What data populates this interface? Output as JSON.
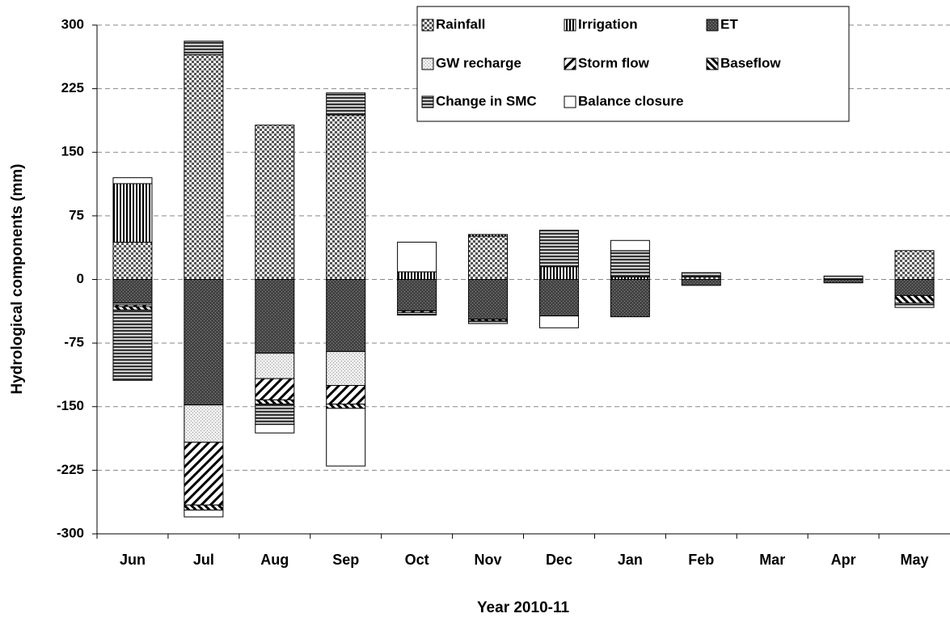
{
  "chart_data": {
    "type": "stacked-bar",
    "ylabel": "Hydrological components (mm)",
    "xlabel": "Year 2010-11",
    "categories": [
      "Jun",
      "Jul",
      "Aug",
      "Sep",
      "Oct",
      "Nov",
      "Dec",
      "Jan",
      "Feb",
      "Mar",
      "Apr",
      "May"
    ],
    "series": [
      {
        "name": "Rainfall",
        "values": [
          44,
          265,
          182,
          194,
          0,
          51,
          0,
          0,
          3,
          0,
          0,
          34
        ]
      },
      {
        "name": "Irrigation",
        "values": [
          69,
          0,
          0,
          0,
          9,
          2,
          15,
          3,
          0,
          0,
          0,
          0
        ]
      },
      {
        "name": "ET",
        "values": [
          -28,
          -148,
          -87,
          -85,
          -37,
          -47,
          -43,
          -44,
          -7,
          0,
          -4,
          -19
        ]
      },
      {
        "name": "GW recharge",
        "values": [
          -2,
          -44,
          -30,
          -40,
          0,
          0,
          0,
          0,
          0,
          0,
          0,
          0
        ]
      },
      {
        "name": "Storm flow",
        "values": [
          -2,
          -74,
          -25,
          -22,
          -2,
          0,
          0,
          0,
          0,
          0,
          0,
          0
        ]
      },
      {
        "name": "Baseflow",
        "values": [
          -4,
          -6,
          -5,
          -5,
          0,
          -2,
          0,
          0,
          0,
          0,
          0,
          -9
        ]
      },
      {
        "name": "Change in SMC",
        "values": [
          -83,
          16,
          -24,
          26,
          -3,
          -3,
          43,
          31,
          5,
          0,
          4,
          -2
        ]
      },
      {
        "name": "Balance closure",
        "values": [
          7,
          -8,
          -10,
          -68,
          35,
          0,
          -14,
          12,
          0,
          0,
          0,
          -3
        ]
      }
    ],
    "ylim": [
      -300,
      300
    ],
    "yticks": [
      300,
      225,
      150,
      75,
      0,
      -75,
      -150,
      -225,
      -300
    ],
    "grid": true
  }
}
